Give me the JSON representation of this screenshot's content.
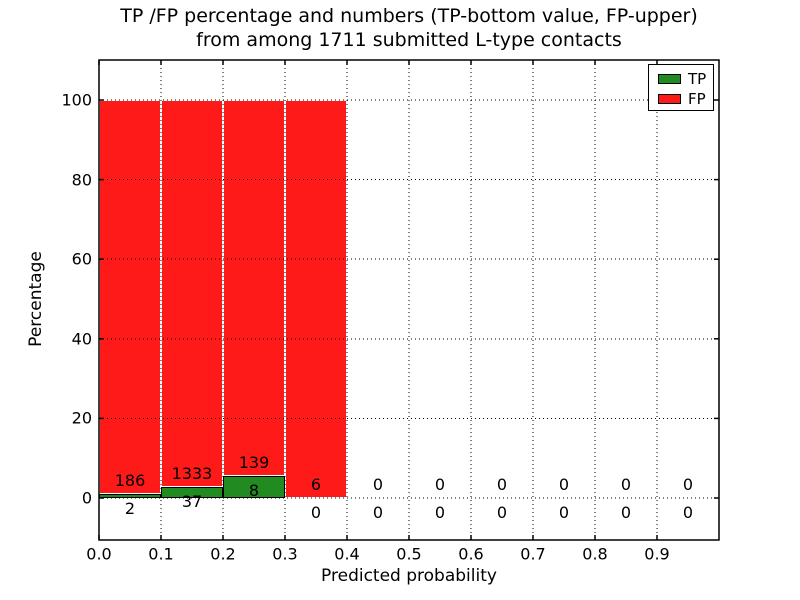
{
  "titles": {
    "line1": "TP /FP percentage and numbers (TP-bottom value, FP-upper)",
    "line2": "from among 1711 submitted L-type contacts"
  },
  "chart_data": {
    "type": "bar",
    "stacked": true,
    "normalized_to_percent": true,
    "title": "TP /FP percentage and numbers (TP-bottom value, FP-upper) from among 1711 submitted L-type contacts",
    "xlabel": "Predicted probability",
    "ylabel": "Percentage",
    "total_contacts": 1711,
    "x_bin_width": 0.1,
    "x_bin_starts": [
      0.0,
      0.1,
      0.2,
      0.3,
      0.4,
      0.5,
      0.6,
      0.7,
      0.8,
      0.9
    ],
    "xtick_labels": [
      "0.0",
      "0.1",
      "0.2",
      "0.3",
      "0.4",
      "0.5",
      "0.6",
      "0.7",
      "0.8",
      "0.9"
    ],
    "ytick_values": [
      0,
      20,
      40,
      60,
      80,
      100
    ],
    "xlim": [
      0.0,
      1.0
    ],
    "ylim": [
      -10,
      110
    ],
    "grid": {
      "style": "dotted",
      "color": "#000000",
      "drawn_over_bars": true
    },
    "series": [
      {
        "name": "TP",
        "color": "#218a21",
        "label_position": "bottom",
        "counts": [
          2,
          37,
          8,
          0,
          0,
          0,
          0,
          0,
          0,
          0
        ]
      },
      {
        "name": "FP",
        "color": "#ff1a1a",
        "label_position": "upper",
        "counts": [
          186,
          1333,
          139,
          6,
          0,
          0,
          0,
          0,
          0,
          0
        ]
      }
    ],
    "bar_percentages": [
      {
        "bin": "0.0-0.1",
        "tp_pct": 1.06,
        "fp_pct": 98.94
      },
      {
        "bin": "0.1-0.2",
        "tp_pct": 2.7,
        "fp_pct": 97.3
      },
      {
        "bin": "0.2-0.3",
        "tp_pct": 5.44,
        "fp_pct": 94.56
      },
      {
        "bin": "0.3-0.4",
        "tp_pct": 0.0,
        "fp_pct": 100.0
      },
      {
        "bin": "0.4-0.5",
        "tp_pct": 0,
        "fp_pct": 0
      },
      {
        "bin": "0.5-0.6",
        "tp_pct": 0,
        "fp_pct": 0
      },
      {
        "bin": "0.6-0.7",
        "tp_pct": 0,
        "fp_pct": 0
      },
      {
        "bin": "0.7-0.8",
        "tp_pct": 0,
        "fp_pct": 0
      },
      {
        "bin": "0.8-0.9",
        "tp_pct": 0,
        "fp_pct": 0
      },
      {
        "bin": "0.9-1.0",
        "tp_pct": 0,
        "fp_pct": 0
      }
    ],
    "legend": {
      "position": "upper right",
      "items": [
        "TP",
        "FP"
      ]
    }
  }
}
